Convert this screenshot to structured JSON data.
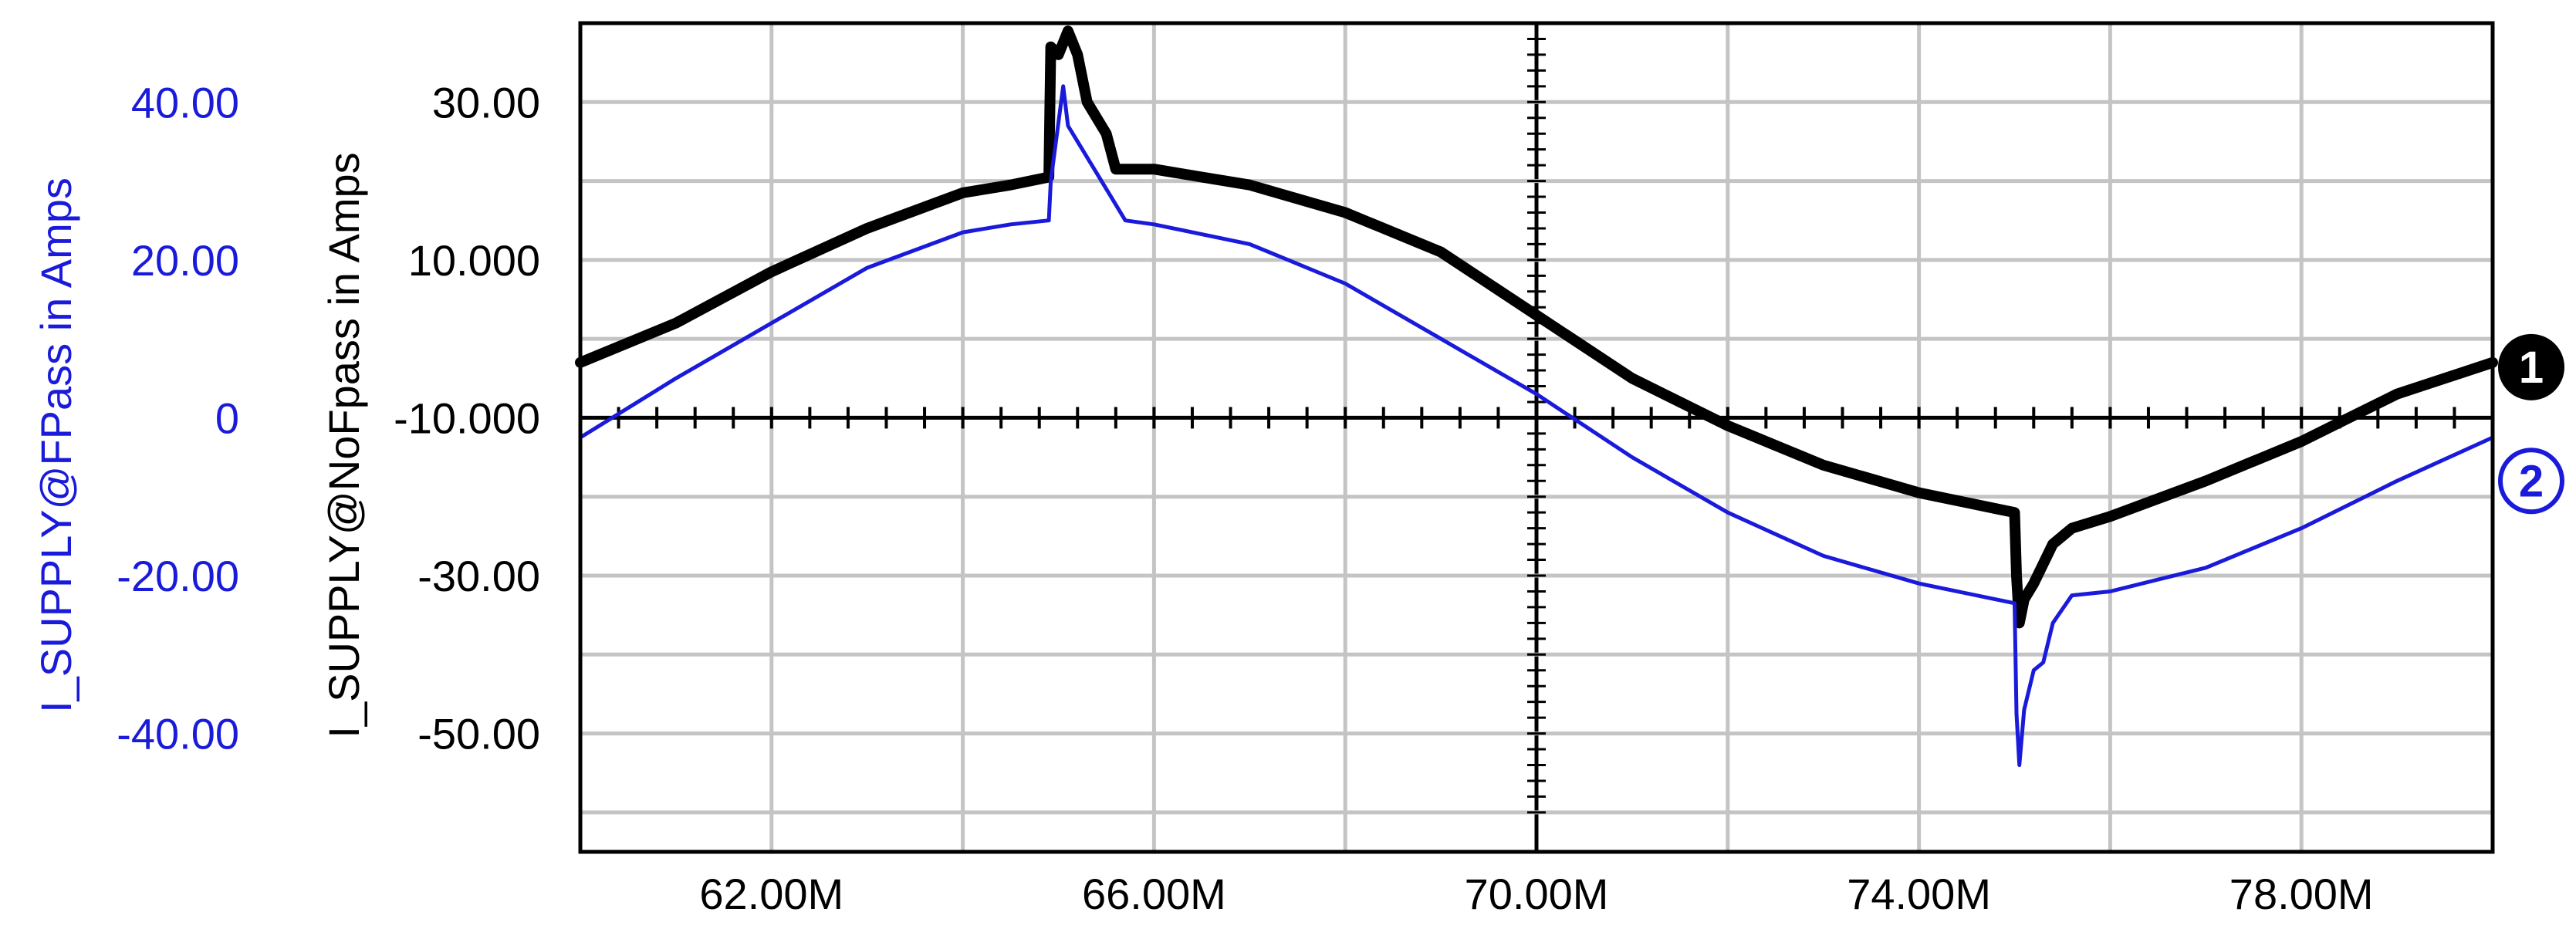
{
  "chart_data": {
    "type": "line",
    "title": "",
    "x_axis": {
      "label": "",
      "range": [
        60000000,
        80000000
      ],
      "ticks": [
        62000000,
        66000000,
        70000000,
        74000000,
        78000000
      ],
      "tick_labels": [
        "62.00M",
        "66.00M",
        "70.00M",
        "74.00M",
        "78.00M"
      ],
      "grid": true
    },
    "y_axes": [
      {
        "id": "left-outer",
        "label": "I_SUPPLY@FPass in Amps",
        "color": "#1a1adb",
        "range": [
          -55,
          50
        ],
        "ticks": [
          40,
          20,
          0,
          -20,
          -40
        ],
        "tick_labels": [
          "40.00",
          "20.00",
          "0",
          "-20.00",
          "-40.00"
        ]
      },
      {
        "id": "left-inner",
        "label": "I_SUPPLY@NoFpass in Amps",
        "color": "#000000",
        "range": [
          -65,
          40
        ],
        "ticks": [
          30,
          10,
          -10,
          -30,
          -50
        ],
        "tick_labels": [
          "30.00",
          "10.000",
          "-10.000",
          "-30.00",
          "-50.00"
        ],
        "grid": true
      }
    ],
    "series": [
      {
        "name": "I_SUPPLY@NoFpass in Amps",
        "marker": "1",
        "axis": "left-inner",
        "color": "#000000",
        "points": [
          [
            60000000,
            -3
          ],
          [
            61000000,
            2
          ],
          [
            62000000,
            8.5
          ],
          [
            63000000,
            14
          ],
          [
            64000000,
            18.5
          ],
          [
            64500000,
            19.5
          ],
          [
            64900000,
            20.5
          ],
          [
            64920000,
            37
          ],
          [
            65000000,
            36
          ],
          [
            65100000,
            39
          ],
          [
            65200000,
            36
          ],
          [
            65300000,
            30
          ],
          [
            65500000,
            26
          ],
          [
            65600000,
            21.5
          ],
          [
            66000000,
            21.5
          ],
          [
            66500000,
            20.5
          ],
          [
            67000000,
            19.5
          ],
          [
            68000000,
            16
          ],
          [
            69000000,
            11
          ],
          [
            70000000,
            3
          ],
          [
            71000000,
            -5
          ],
          [
            72000000,
            -11
          ],
          [
            73000000,
            -16
          ],
          [
            74000000,
            -19.5
          ],
          [
            74800000,
            -21.5
          ],
          [
            75000000,
            -22
          ],
          [
            75020000,
            -30
          ],
          [
            75050000,
            -36
          ],
          [
            75100000,
            -33
          ],
          [
            75200000,
            -31
          ],
          [
            75400000,
            -26
          ],
          [
            75600000,
            -24
          ],
          [
            76000000,
            -22.5
          ],
          [
            77000000,
            -18
          ],
          [
            78000000,
            -13
          ],
          [
            79000000,
            -7
          ],
          [
            80000000,
            -3
          ]
        ]
      },
      {
        "name": "I_SUPPLY@FPass in Amps",
        "marker": "2",
        "axis": "left-outer",
        "color": "#1a1adb",
        "points": [
          [
            60000000,
            -2.5
          ],
          [
            61000000,
            5
          ],
          [
            62000000,
            12
          ],
          [
            63000000,
            19
          ],
          [
            64000000,
            23.5
          ],
          [
            64500000,
            24.5
          ],
          [
            64900000,
            25
          ],
          [
            64920000,
            30
          ],
          [
            65050000,
            42
          ],
          [
            65100000,
            37
          ],
          [
            65300000,
            33
          ],
          [
            65500000,
            29
          ],
          [
            65700000,
            25
          ],
          [
            66000000,
            24.5
          ],
          [
            67000000,
            22
          ],
          [
            68000000,
            17
          ],
          [
            69000000,
            10
          ],
          [
            70000000,
            3
          ],
          [
            71000000,
            -5
          ],
          [
            72000000,
            -12
          ],
          [
            73000000,
            -17.5
          ],
          [
            74000000,
            -21
          ],
          [
            74800000,
            -23
          ],
          [
            75000000,
            -23.5
          ],
          [
            75020000,
            -37.5
          ],
          [
            75050000,
            -44
          ],
          [
            75100000,
            -37
          ],
          [
            75200000,
            -32
          ],
          [
            75300000,
            -31
          ],
          [
            75400000,
            -26
          ],
          [
            75600000,
            -22.5
          ],
          [
            76000000,
            -22
          ],
          [
            77000000,
            -19
          ],
          [
            78000000,
            -14
          ],
          [
            79000000,
            -8
          ],
          [
            80000000,
            -2.5
          ]
        ]
      }
    ],
    "legend": "markers-right"
  }
}
